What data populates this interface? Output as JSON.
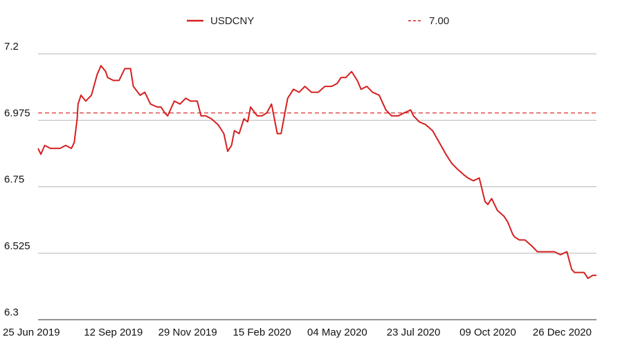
{
  "colors": {
    "series": "#d61e1e",
    "grid": "#b5b5b5",
    "axis": "#555555",
    "text": "#111111"
  },
  "chart_data": {
    "type": "line",
    "title": "",
    "xlabel": "",
    "ylabel": "",
    "ylim": [
      6.3,
      7.2
    ],
    "yticks": [
      "6.3",
      "6.525",
      "6.75",
      "6.975",
      "7.2"
    ],
    "ytick_values": [
      6.3,
      6.525,
      6.75,
      6.975,
      7.2
    ],
    "xlim": [
      "2019-06-25",
      "2021-01-31"
    ],
    "xticks": [
      "25 Jun 2019",
      "12 Sep 2019",
      "29 Nov 2019",
      "15 Feb 2020",
      "04 May 2020",
      "23 Jul 2020",
      "09 Oct 2020",
      "26 Dec 2020"
    ],
    "xtick_dates": [
      "2019-06-25",
      "2019-09-12",
      "2019-11-29",
      "2020-02-15",
      "2020-05-04",
      "2020-07-23",
      "2020-10-09",
      "2020-12-26"
    ],
    "grid": true,
    "legend_position": "top",
    "legend": {
      "series_label": "USDCNY",
      "reference_label": "7.00"
    },
    "reference_line": {
      "name": "7.00",
      "y": 7.0,
      "style": "dashed"
    },
    "series": [
      {
        "name": "USDCNY",
        "x": [
          "2019-06-25",
          "2019-06-28",
          "2019-07-02",
          "2019-07-08",
          "2019-07-12",
          "2019-07-18",
          "2019-07-24",
          "2019-07-30",
          "2019-08-02",
          "2019-08-05",
          "2019-08-06",
          "2019-08-09",
          "2019-08-14",
          "2019-08-20",
          "2019-08-26",
          "2019-08-30",
          "2019-09-04",
          "2019-09-06",
          "2019-09-12",
          "2019-09-18",
          "2019-09-24",
          "2019-09-30",
          "2019-10-03",
          "2019-10-10",
          "2019-10-15",
          "2019-10-21",
          "2019-10-28",
          "2019-11-01",
          "2019-11-05",
          "2019-11-08",
          "2019-11-15",
          "2019-11-21",
          "2019-11-27",
          "2019-12-02",
          "2019-12-09",
          "2019-12-13",
          "2019-12-18",
          "2019-12-24",
          "2019-12-31",
          "2020-01-06",
          "2020-01-10",
          "2020-01-14",
          "2020-01-17",
          "2020-01-22",
          "2020-01-27",
          "2020-01-31",
          "2020-02-03",
          "2020-02-10",
          "2020-02-15",
          "2020-02-20",
          "2020-02-25",
          "2020-03-02",
          "2020-03-06",
          "2020-03-10",
          "2020-03-13",
          "2020-03-19",
          "2020-03-25",
          "2020-03-31",
          "2020-04-07",
          "2020-04-14",
          "2020-04-21",
          "2020-04-28",
          "2020-05-04",
          "2020-05-08",
          "2020-05-13",
          "2020-05-19",
          "2020-05-25",
          "2020-05-29",
          "2020-06-04",
          "2020-06-10",
          "2020-06-17",
          "2020-06-24",
          "2020-06-30",
          "2020-07-07",
          "2020-07-13",
          "2020-07-20",
          "2020-07-23",
          "2020-07-29",
          "2020-08-05",
          "2020-08-12",
          "2020-08-19",
          "2020-08-26",
          "2020-09-01",
          "2020-09-07",
          "2020-09-14",
          "2020-09-18",
          "2020-09-24",
          "2020-09-30",
          "2020-10-06",
          "2020-10-09",
          "2020-10-13",
          "2020-10-19",
          "2020-10-26",
          "2020-10-30",
          "2020-11-04",
          "2020-11-06",
          "2020-11-11",
          "2020-11-17",
          "2020-11-24",
          "2020-11-30",
          "2020-12-04",
          "2020-12-11",
          "2020-12-18",
          "2020-12-24",
          "2020-12-31",
          "2021-01-05",
          "2021-01-08",
          "2021-01-13",
          "2021-01-18",
          "2021-01-22",
          "2021-01-27",
          "2021-01-31"
        ],
        "values": [
          6.88,
          6.86,
          6.89,
          6.88,
          6.88,
          6.88,
          6.89,
          6.88,
          6.9,
          6.98,
          7.03,
          7.06,
          7.04,
          7.06,
          7.13,
          7.16,
          7.14,
          7.12,
          7.11,
          7.11,
          7.15,
          7.15,
          7.09,
          7.06,
          7.07,
          7.03,
          7.02,
          7.02,
          7.0,
          6.99,
          7.04,
          7.03,
          7.05,
          7.04,
          7.04,
          6.99,
          6.99,
          6.98,
          6.96,
          6.93,
          6.87,
          6.89,
          6.94,
          6.93,
          6.98,
          6.97,
          7.02,
          6.99,
          6.99,
          7.0,
          7.03,
          6.93,
          6.93,
          7.0,
          7.05,
          7.08,
          7.07,
          7.09,
          7.07,
          7.07,
          7.09,
          7.09,
          7.1,
          7.12,
          7.12,
          7.14,
          7.11,
          7.08,
          7.09,
          7.07,
          7.06,
          7.01,
          6.99,
          6.99,
          7.0,
          7.01,
          6.99,
          6.97,
          6.96,
          6.94,
          6.9,
          6.86,
          6.83,
          6.81,
          6.79,
          6.78,
          6.77,
          6.78,
          6.7,
          6.69,
          6.71,
          6.67,
          6.65,
          6.63,
          6.59,
          6.58,
          6.57,
          6.57,
          6.55,
          6.53,
          6.53,
          6.53,
          6.53,
          6.52,
          6.53,
          6.47,
          6.46,
          6.46,
          6.46,
          6.44,
          6.45,
          6.45
        ]
      }
    ]
  }
}
